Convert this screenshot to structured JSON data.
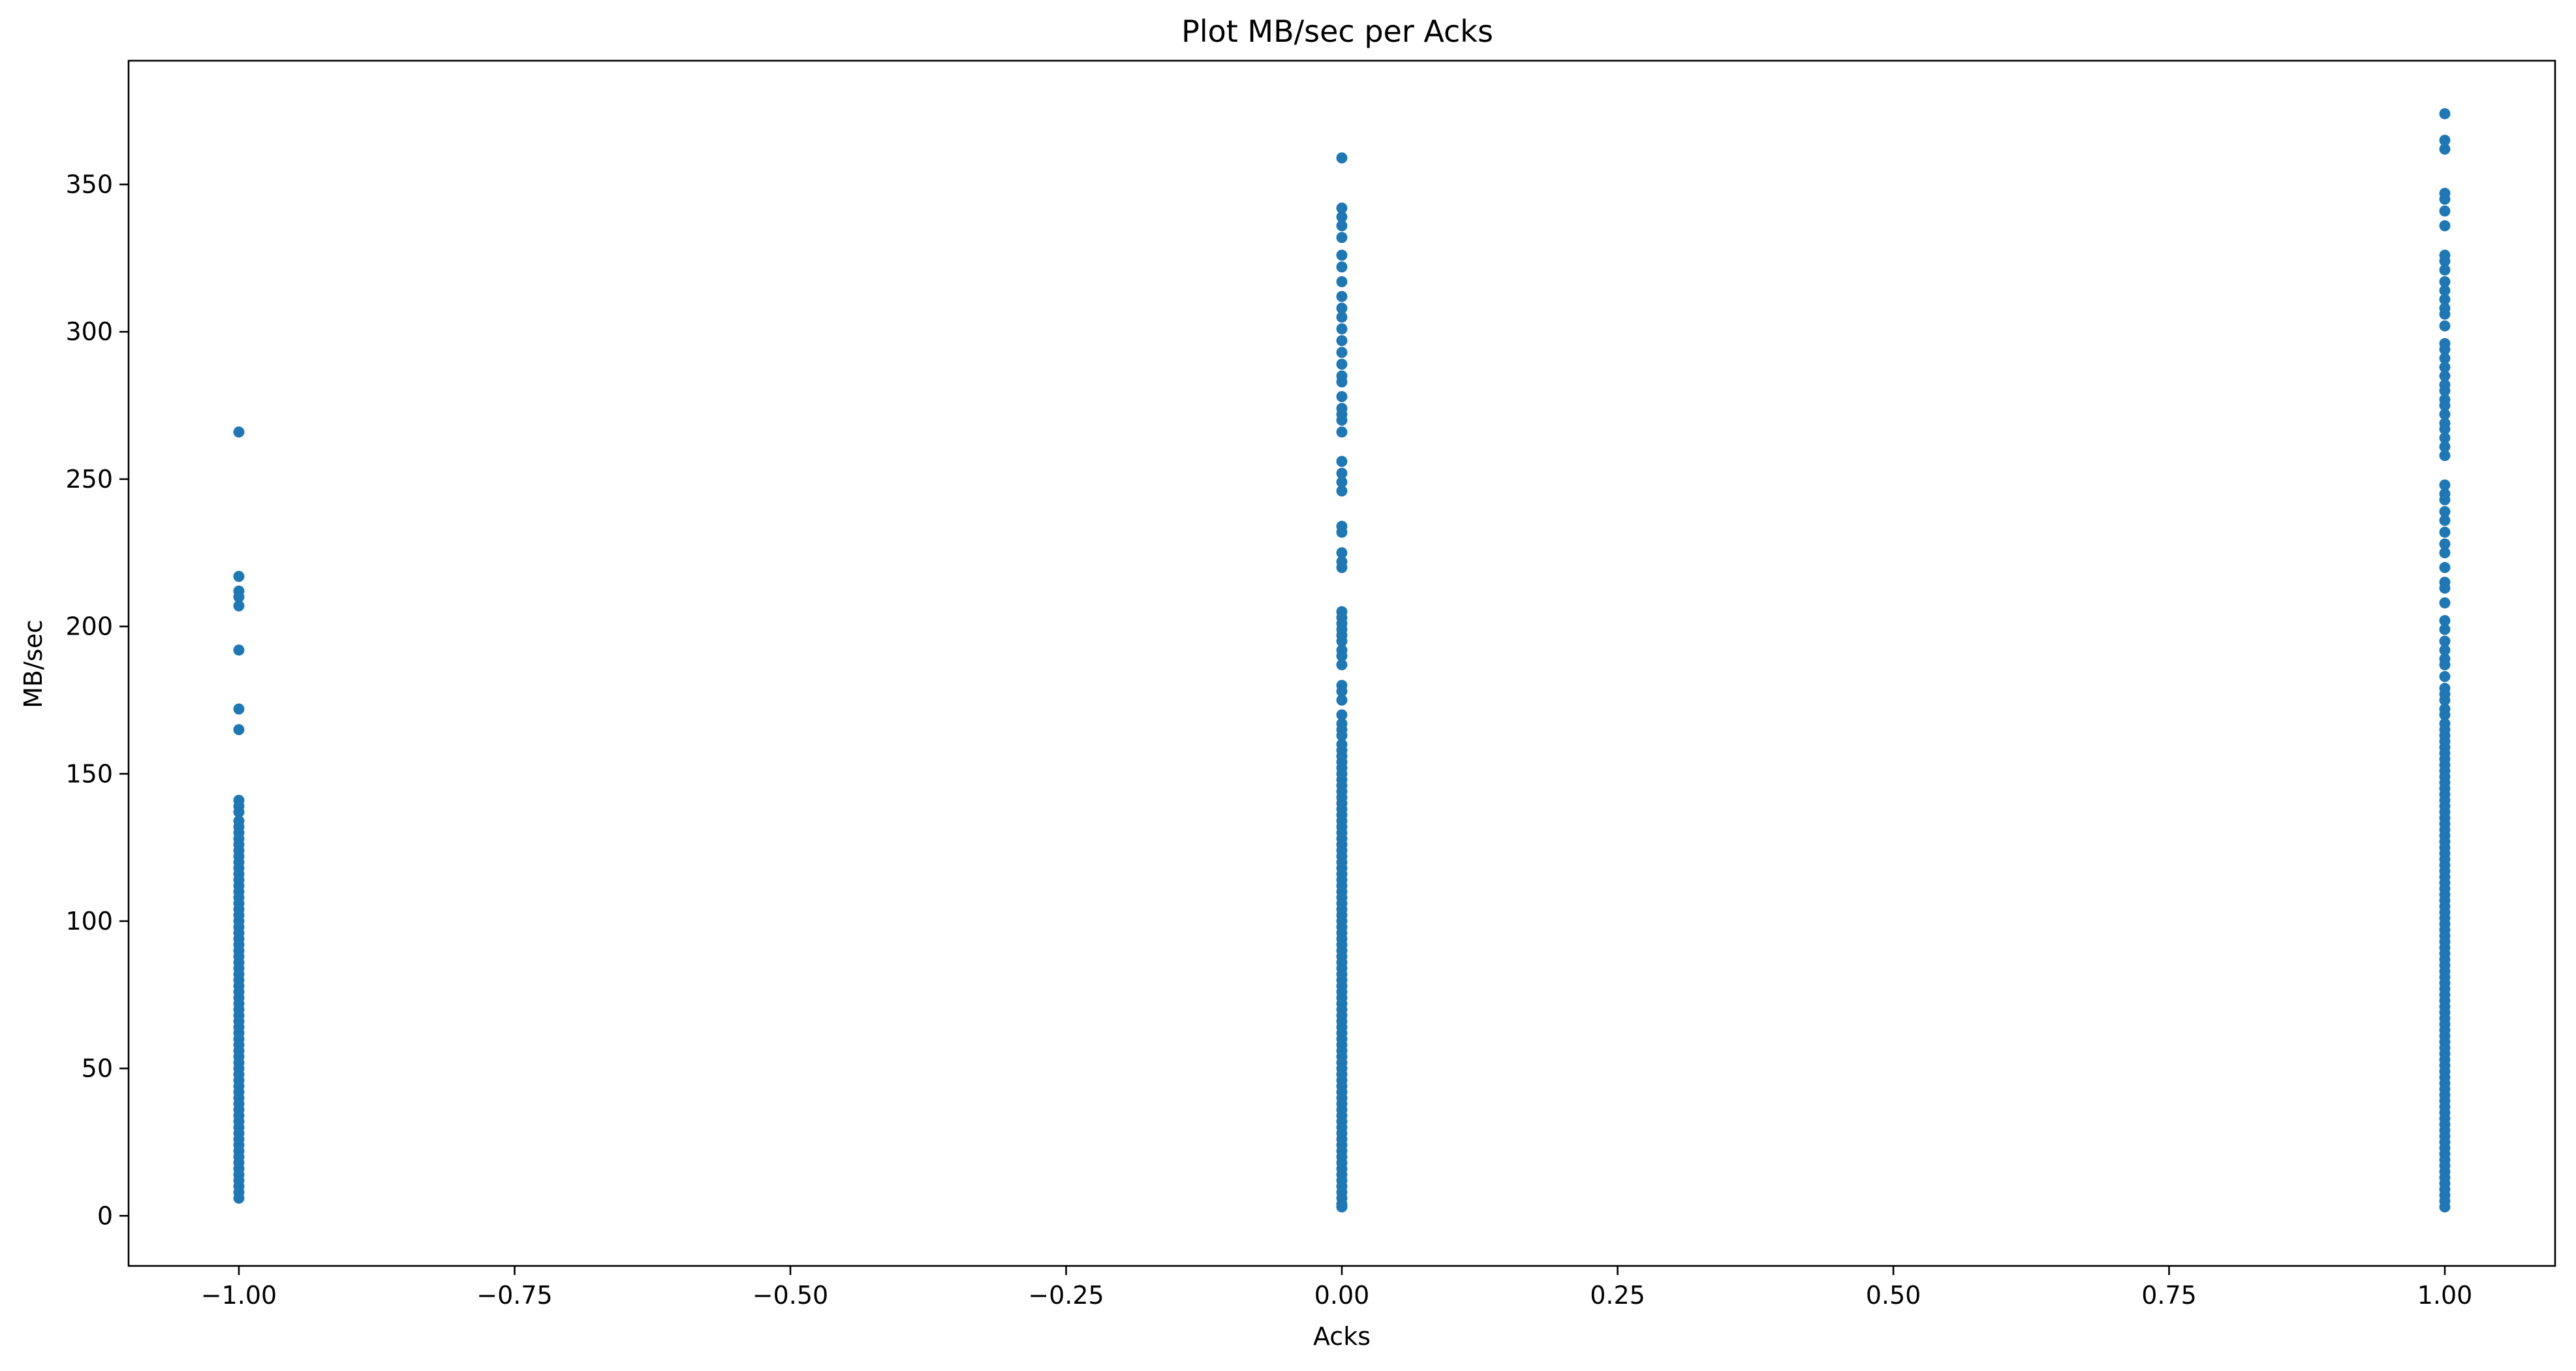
{
  "chart_data": {
    "type": "scatter",
    "title": "Plot MB/sec per Acks",
    "xlabel": "Acks",
    "ylabel": "MB/sec",
    "xlim": [
      -1.1,
      1.1
    ],
    "ylim": [
      -17,
      392
    ],
    "grid": false,
    "legend": "none",
    "marker_color": "#1f77b4",
    "x_ticks": [
      -1.0,
      -0.75,
      -0.5,
      -0.25,
      0.0,
      0.25,
      0.5,
      0.75,
      1.0
    ],
    "x_tick_labels": [
      "−1.00",
      "−0.75",
      "−0.50",
      "−0.25",
      "0.00",
      "0.25",
      "0.50",
      "0.75",
      "1.00"
    ],
    "y_ticks": [
      0,
      50,
      100,
      150,
      200,
      250,
      300,
      350
    ],
    "y_tick_labels": [
      "0",
      "50",
      "100",
      "150",
      "200",
      "250",
      "300",
      "350"
    ],
    "series": [
      {
        "x": -1,
        "values": [
          266,
          217,
          212,
          210,
          207,
          192,
          172,
          165,
          141,
          139,
          137,
          134,
          132,
          130,
          128,
          126,
          124,
          122,
          120,
          118,
          116,
          114,
          112,
          110,
          108,
          106,
          104,
          102,
          100,
          98,
          96,
          94,
          92,
          90,
          88,
          86,
          84,
          82,
          80,
          78,
          76,
          74,
          72,
          70,
          68,
          66,
          64,
          62,
          60,
          58,
          56,
          54,
          52,
          50,
          48,
          46,
          44,
          42,
          40,
          38,
          36,
          34,
          32,
          30,
          28,
          26,
          24,
          22,
          20,
          18,
          16,
          14,
          12,
          10,
          8,
          6
        ]
      },
      {
        "x": 0,
        "values": [
          359,
          342,
          339,
          336,
          332,
          326,
          322,
          317,
          312,
          308,
          305,
          301,
          297,
          293,
          289,
          285,
          283,
          278,
          274,
          272,
          270,
          266,
          256,
          252,
          249,
          246,
          234,
          232,
          225,
          222,
          220,
          205,
          203,
          201,
          199,
          197,
          195,
          192,
          190,
          187,
          180,
          178,
          175,
          170,
          167,
          165,
          163,
          160,
          158,
          156,
          154,
          152,
          150,
          148,
          146,
          144,
          142,
          140,
          138,
          136,
          134,
          132,
          130,
          128,
          126,
          124,
          122,
          120,
          118,
          116,
          114,
          112,
          110,
          108,
          106,
          104,
          102,
          100,
          98,
          96,
          94,
          92,
          90,
          88,
          86,
          84,
          82,
          80,
          78,
          76,
          74,
          72,
          70,
          68,
          66,
          64,
          62,
          60,
          58,
          56,
          54,
          52,
          50,
          48,
          46,
          44,
          42,
          40,
          38,
          36,
          34,
          32,
          30,
          28,
          26,
          24,
          22,
          20,
          18,
          16,
          14,
          12,
          10,
          8,
          6,
          4,
          3
        ]
      },
      {
        "x": 1,
        "values": [
          374,
          365,
          362,
          347,
          345,
          341,
          336,
          326,
          324,
          321,
          317,
          314,
          311,
          308,
          306,
          302,
          296,
          294,
          291,
          288,
          285,
          282,
          280,
          277,
          275,
          272,
          269,
          267,
          264,
          261,
          258,
          248,
          245,
          243,
          239,
          236,
          232,
          228,
          225,
          220,
          215,
          213,
          208,
          202,
          199,
          195,
          192,
          189,
          187,
          183,
          179,
          177,
          175,
          172,
          170,
          167,
          165,
          163,
          161,
          159,
          157,
          155,
          153,
          151,
          149,
          147,
          145,
          143,
          141,
          139,
          137,
          135,
          133,
          131,
          129,
          127,
          125,
          123,
          121,
          119,
          117,
          115,
          113,
          111,
          109,
          107,
          105,
          103,
          101,
          99,
          97,
          95,
          93,
          91,
          89,
          87,
          85,
          83,
          81,
          79,
          77,
          75,
          73,
          71,
          69,
          67,
          65,
          63,
          61,
          59,
          57,
          55,
          53,
          51,
          49,
          47,
          45,
          43,
          41,
          39,
          37,
          35,
          33,
          31,
          29,
          27,
          25,
          23,
          21,
          19,
          17,
          15,
          13,
          11,
          9,
          7,
          5,
          3
        ]
      }
    ]
  }
}
